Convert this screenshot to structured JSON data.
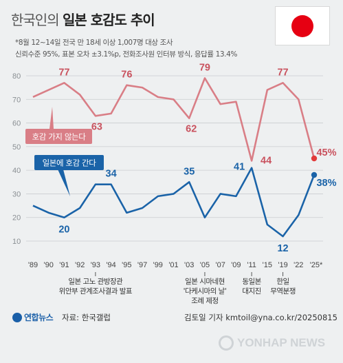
{
  "header": {
    "title_light": "한국인의",
    "title_bold": "일본 호감도 추이",
    "subtitle_line1": "*8월 12~14일 전국 만 18세 이상 1,007명 대상 조사",
    "subtitle_line2": "신뢰수준 95%, 표본 오차 ±3.1%p, 전화조사원 인터뷰 방식, 응답률 13.4%"
  },
  "flag": {
    "country": "Japan",
    "disc_color": "#e60012"
  },
  "chart_data": {
    "type": "line",
    "x": [
      "'89",
      "'90",
      "'91",
      "'92",
      "'93",
      "'94",
      "'95",
      "'97",
      "'99",
      "'01",
      "'03",
      "'05",
      "'07",
      "'09",
      "'11",
      "'15",
      "'19",
      "'22",
      "'25*"
    ],
    "ylim": [
      10,
      80
    ],
    "yticks": [
      10,
      20,
      30,
      40,
      50,
      60,
      70,
      80
    ],
    "grid": true,
    "series": [
      {
        "name": "호감 가지 않는다",
        "color": "#d97e86",
        "values": [
          71,
          74,
          77,
          72,
          63,
          64,
          76,
          75,
          71,
          70,
          62,
          79,
          68,
          69,
          44,
          74,
          77,
          70,
          45
        ]
      },
      {
        "name": "일본에 호감 간다",
        "color": "#1a63a8",
        "values": [
          25,
          22,
          20,
          24,
          34,
          34,
          22,
          24,
          29,
          30,
          35,
          20,
          30,
          29,
          41,
          17,
          12,
          21,
          38
        ]
      }
    ],
    "value_labels": [
      {
        "series": 0,
        "index": 2,
        "text": "77"
      },
      {
        "series": 0,
        "index": 4,
        "text": "63"
      },
      {
        "series": 0,
        "index": 6,
        "text": "76"
      },
      {
        "series": 0,
        "index": 10,
        "text": "62"
      },
      {
        "series": 0,
        "index": 11,
        "text": "79"
      },
      {
        "series": 0,
        "index": 14,
        "text": "44"
      },
      {
        "series": 0,
        "index": 16,
        "text": "77"
      },
      {
        "series": 0,
        "index": 18,
        "text": "45%"
      },
      {
        "series": 1,
        "index": 2,
        "text": "20"
      },
      {
        "series": 1,
        "index": 5,
        "text": "34"
      },
      {
        "series": 1,
        "index": 10,
        "text": "35"
      },
      {
        "series": 1,
        "index": 14,
        "text": "41"
      },
      {
        "series": 1,
        "index": 16,
        "text": "12"
      },
      {
        "series": 1,
        "index": 18,
        "text": "38%"
      }
    ],
    "annotations": [
      {
        "index": 4,
        "lines": [
          "일본 고노 관방장관",
          "위안부 관계조사결과 발표"
        ]
      },
      {
        "index": 11,
        "lines": [
          "일본 시마네현",
          "'다케시마의 날'",
          "조례 제정"
        ]
      },
      {
        "index": 14,
        "lines": [
          "동일본",
          "대지진"
        ]
      },
      {
        "index": 16,
        "lines": [
          "한일",
          "무역분쟁"
        ]
      }
    ]
  },
  "footer": {
    "logo_text": "연합뉴스",
    "source": "자료: 한국갤럽",
    "credit": "김토일 기자 kmtoil@yna.co.kr/20250815",
    "watermark": "YONHAP NEWS"
  }
}
